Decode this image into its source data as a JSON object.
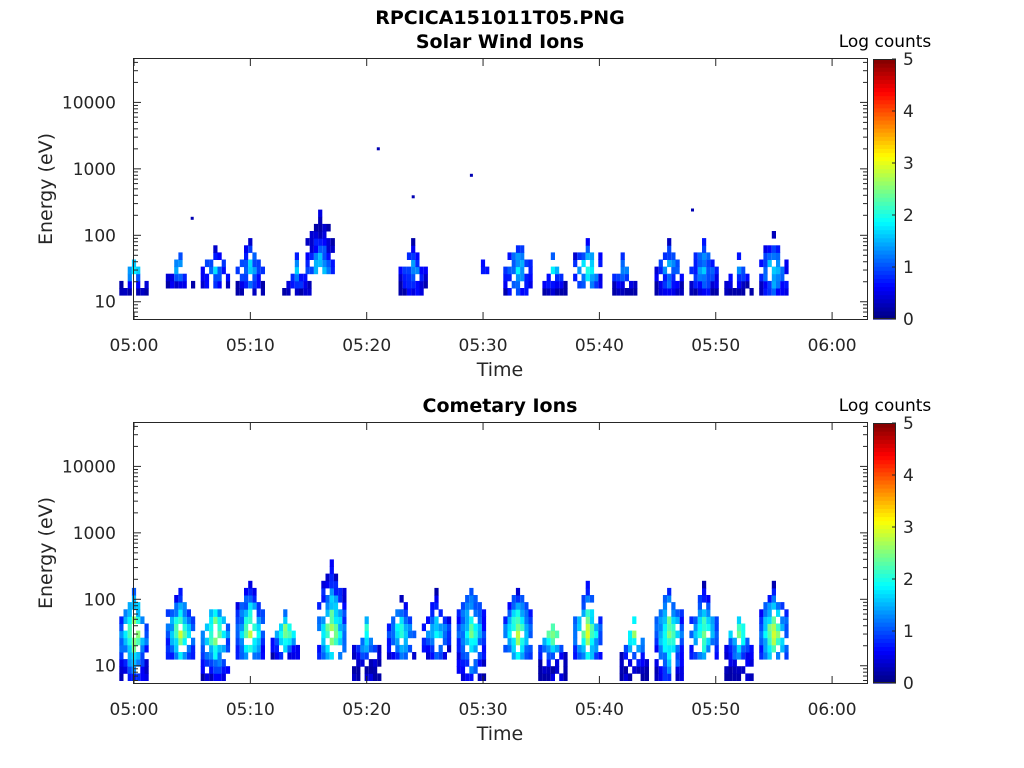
{
  "figure": {
    "title": "RPCICA151011T05.PNG"
  },
  "chart_data": [
    {
      "type": "heatmap",
      "title": "Solar Wind Ions",
      "xlabel": "Time",
      "ylabel": "Energy (eV)",
      "y_scale": "log",
      "ylim": [
        5.5,
        45000
      ],
      "xlim": [
        "05:00",
        "06:03"
      ],
      "x_ticks": [
        "05:00",
        "05:10",
        "05:20",
        "05:30",
        "05:40",
        "05:50",
        "06:00"
      ],
      "y_ticks": [
        "10",
        "100",
        "1000",
        "10000"
      ],
      "colorbar": {
        "label": "Log counts",
        "range": [
          0,
          5
        ],
        "ticks": [
          "0",
          "1",
          "2",
          "3",
          "4",
          "5"
        ],
        "colormap": "jet"
      },
      "bursts": [
        {
          "time": "05:00",
          "min_energy": 12,
          "max_energy": 45,
          "peak_log_counts": 2.0
        },
        {
          "time": "05:04",
          "min_energy": 16,
          "max_energy": 55,
          "peak_log_counts": 1.8
        },
        {
          "time": "05:07",
          "min_energy": 16,
          "max_energy": 70,
          "peak_log_counts": 1.6
        },
        {
          "time": "05:10",
          "min_energy": 12,
          "max_energy": 80,
          "peak_log_counts": 1.7
        },
        {
          "time": "05:14",
          "min_energy": 10,
          "max_energy": 45,
          "peak_log_counts": 1.6
        },
        {
          "time": "05:16",
          "min_energy": 25,
          "max_energy": 210,
          "peak_log_counts": 1.9
        },
        {
          "time": "05:24",
          "min_energy": 12,
          "max_energy": 75,
          "peak_log_counts": 1.4
        },
        {
          "time": "05:30",
          "min_energy": 25,
          "max_energy": 40,
          "peak_log_counts": 1.0
        },
        {
          "time": "05:33",
          "min_energy": 12,
          "max_energy": 90,
          "peak_log_counts": 1.8
        },
        {
          "time": "05:36",
          "min_energy": 12,
          "max_energy": 45,
          "peak_log_counts": 1.7
        },
        {
          "time": "05:39",
          "min_energy": 16,
          "max_energy": 110,
          "peak_log_counts": 2.2
        },
        {
          "time": "05:42",
          "min_energy": 12,
          "max_energy": 45,
          "peak_log_counts": 1.5
        },
        {
          "time": "05:46",
          "min_energy": 12,
          "max_energy": 75,
          "peak_log_counts": 1.6
        },
        {
          "time": "05:49",
          "min_energy": 12,
          "max_energy": 80,
          "peak_log_counts": 1.6
        },
        {
          "time": "05:52",
          "min_energy": 12,
          "max_energy": 45,
          "peak_log_counts": 1.5
        },
        {
          "time": "05:55",
          "min_energy": 12,
          "max_energy": 110,
          "peak_log_counts": 1.9
        }
      ],
      "isolated_points": [
        {
          "time": "05:05",
          "energy": 180
        },
        {
          "time": "05:21",
          "energy": 2000
        },
        {
          "time": "05:24",
          "energy": 380
        },
        {
          "time": "05:29",
          "energy": 800
        },
        {
          "time": "05:48",
          "energy": 240
        }
      ]
    },
    {
      "type": "heatmap",
      "title": "Cometary Ions",
      "xlabel": "Time",
      "ylabel": "Energy (eV)",
      "y_scale": "log",
      "ylim": [
        5.5,
        45000
      ],
      "xlim": [
        "05:00",
        "06:03"
      ],
      "x_ticks": [
        "05:00",
        "05:10",
        "05:20",
        "05:30",
        "05:40",
        "05:50",
        "06:00"
      ],
      "y_ticks": [
        "10",
        "100",
        "1000",
        "10000"
      ],
      "colorbar": {
        "label": "Log counts",
        "range": [
          0,
          5
        ],
        "ticks": [
          "0",
          "1",
          "2",
          "3",
          "4",
          "5"
        ],
        "colormap": "jet"
      },
      "bursts": [
        {
          "time": "05:00",
          "min_energy": 6,
          "max_energy": 120,
          "peak_log_counts": 3.1
        },
        {
          "time": "05:04",
          "min_energy": 12,
          "max_energy": 140,
          "peak_log_counts": 2.9
        },
        {
          "time": "05:07",
          "min_energy": 6,
          "max_energy": 90,
          "peak_log_counts": 3.0
        },
        {
          "time": "05:10",
          "min_energy": 12,
          "max_energy": 180,
          "peak_log_counts": 2.9
        },
        {
          "time": "05:13",
          "min_energy": 12,
          "max_energy": 60,
          "peak_log_counts": 2.8
        },
        {
          "time": "05:17",
          "min_energy": 12,
          "max_energy": 320,
          "peak_log_counts": 3.0
        },
        {
          "time": "05:20",
          "min_energy": 6,
          "max_energy": 45,
          "peak_log_counts": 2.2
        },
        {
          "time": "05:23",
          "min_energy": 12,
          "max_energy": 95,
          "peak_log_counts": 2.4
        },
        {
          "time": "05:26",
          "min_energy": 12,
          "max_energy": 120,
          "peak_log_counts": 2.0
        },
        {
          "time": "05:29",
          "min_energy": 6,
          "max_energy": 150,
          "peak_log_counts": 2.4
        },
        {
          "time": "05:33",
          "min_energy": 12,
          "max_energy": 150,
          "peak_log_counts": 3.0
        },
        {
          "time": "05:36",
          "min_energy": 6,
          "max_energy": 45,
          "peak_log_counts": 2.8
        },
        {
          "time": "05:39",
          "min_energy": 12,
          "max_energy": 150,
          "peak_log_counts": 3.0
        },
        {
          "time": "05:43",
          "min_energy": 6,
          "max_energy": 45,
          "peak_log_counts": 2.5
        },
        {
          "time": "05:46",
          "min_energy": 6,
          "max_energy": 140,
          "peak_log_counts": 2.7
        },
        {
          "time": "05:49",
          "min_energy": 12,
          "max_energy": 150,
          "peak_log_counts": 2.6
        },
        {
          "time": "05:52",
          "min_energy": 6,
          "max_energy": 50,
          "peak_log_counts": 2.6
        },
        {
          "time": "05:55",
          "min_energy": 12,
          "max_energy": 150,
          "peak_log_counts": 3.2
        }
      ],
      "isolated_points": []
    }
  ]
}
